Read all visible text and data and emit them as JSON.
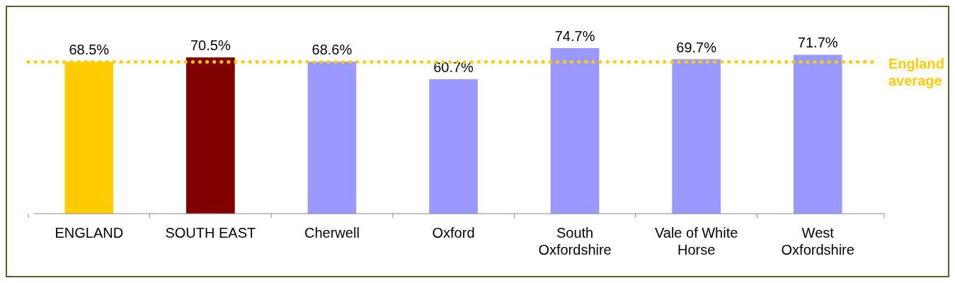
{
  "chart_data": {
    "type": "bar",
    "categories": [
      "ENGLAND",
      "SOUTH EAST",
      "Cherwell",
      "Oxford",
      "South Oxfordshire",
      "Vale of White Horse",
      "West Oxfordshire"
    ],
    "values": [
      68.5,
      70.5,
      68.6,
      60.7,
      74.7,
      69.7,
      71.7
    ],
    "colors": [
      "#ffcc00",
      "#800000",
      "#9999ff",
      "#9999ff",
      "#9999ff",
      "#9999ff",
      "#9999ff"
    ],
    "value_labels": [
      "68.5%",
      "70.5%",
      "68.6%",
      "60.7%",
      "74.7%",
      "69.7%",
      "71.7%"
    ],
    "ref_lines": [
      {
        "axis": "y",
        "value": 68.5,
        "label": "England average",
        "color": "#ffcc00",
        "line_style": "dotted"
      }
    ]
  }
}
